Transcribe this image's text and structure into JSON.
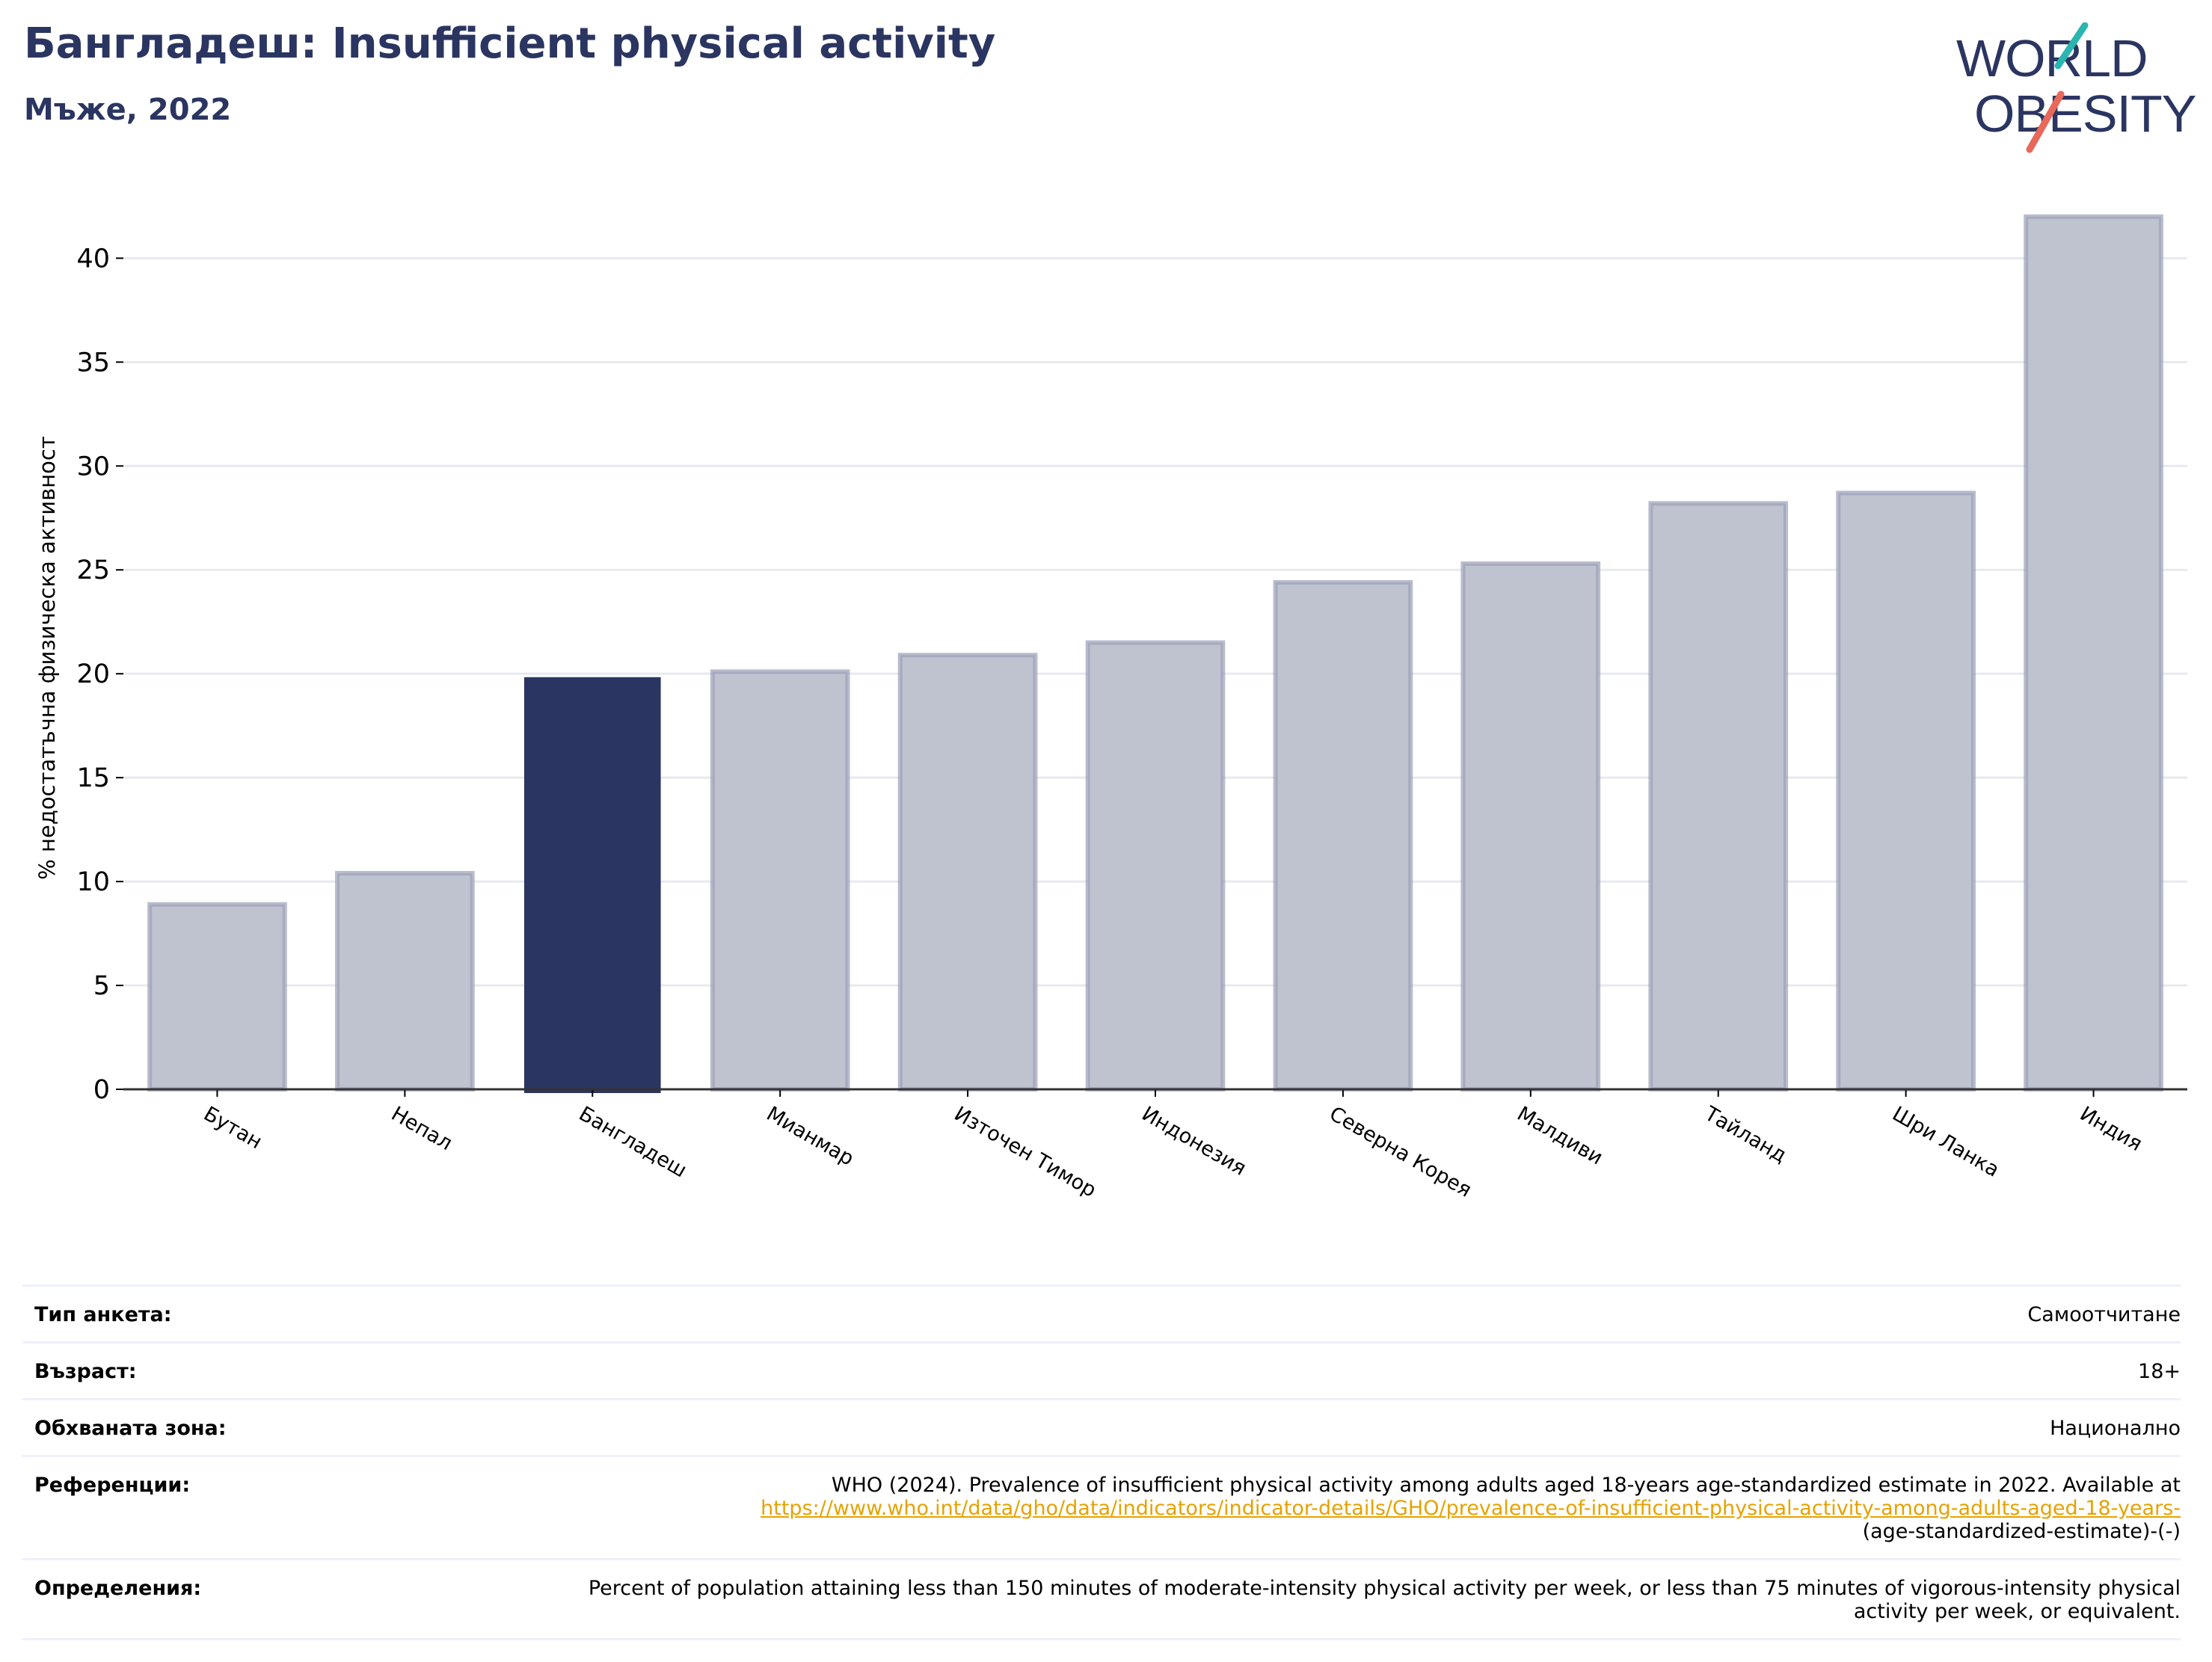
{
  "header": {
    "title": "Бангладеш: Insufficient physical activity",
    "subtitle": "Мъже, 2022"
  },
  "logo": {
    "line1": "WORLD",
    "line2": "OBESITY"
  },
  "colors": {
    "highlight": "#2b3561",
    "bar_fill": "#bfc3d0",
    "bar_border": "#9aa0b6",
    "grid": "#e8e9f0",
    "logo_teal": "#2bb5b0",
    "logo_red": "#e8685a"
  },
  "chart_data": {
    "type": "bar",
    "title": "",
    "xlabel": "",
    "ylabel": "% недостатъчна физическа активност",
    "categories": [
      "Бутан",
      "Непал",
      "Бангладеш",
      "Мианмар",
      "Източен Тимор",
      "Индонезия",
      "Северна Корея",
      "Малдиви",
      "Тайланд",
      "Шри Ланка",
      "Индия"
    ],
    "values": [
      8.9,
      10.4,
      19.8,
      20.1,
      20.9,
      21.5,
      24.4,
      25.3,
      28.2,
      28.7,
      42.0
    ],
    "highlight": "Бангладеш",
    "ylim": [
      0,
      43
    ],
    "yticks": [
      0,
      5,
      10,
      15,
      20,
      25,
      30,
      35,
      40
    ],
    "grid": true
  },
  "meta": [
    {
      "label": "Тип анкета:",
      "value": "Самоотчитане"
    },
    {
      "label": "Възраст:",
      "value": "18+"
    },
    {
      "label": "Обхваната зона:",
      "value": "Национално"
    },
    {
      "label": "Референции:",
      "value": "WHO (2024). Prevalence of insufficient physical activity among adults aged 18-years age-standardized estimate in 2022. Available at",
      "link": "https://www.who.int/data/gho/data/indicators/indicator-details/GHO/prevalence-of-insufficient-physical-activity-among-adults-aged-18-years-",
      "value_tail": "(age-standardized-estimate)-(-)"
    },
    {
      "label": "Определения:",
      "value": "Percent of population attaining less than 150 minutes of moderate-intensity physical activity per week, or less than 75 minutes of vigorous-intensity physical activity per week, or equivalent."
    }
  ]
}
